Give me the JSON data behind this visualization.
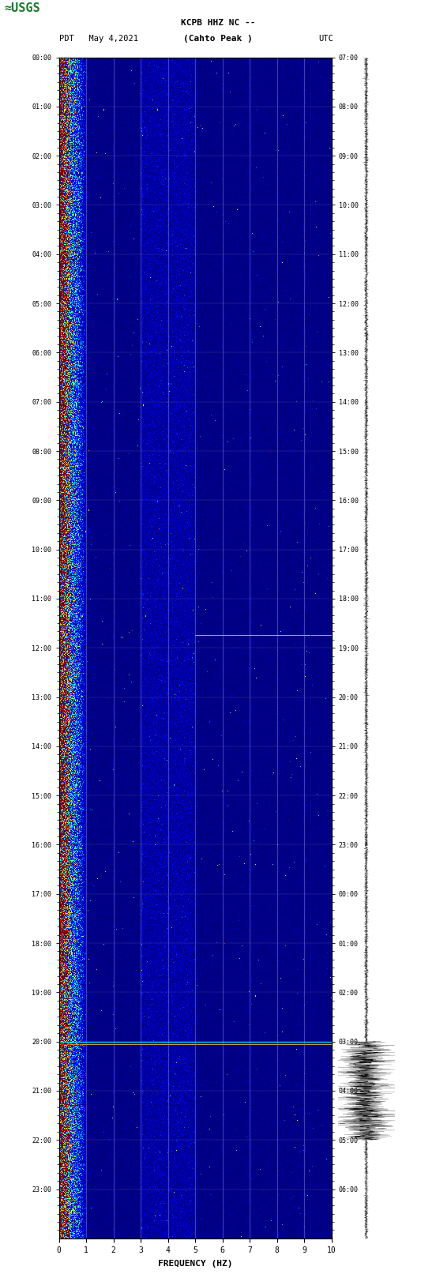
{
  "title_line1": "KCPB HHZ NC --",
  "title_line2": "(Cahto Peak )",
  "left_label": "PDT   May 4,2021",
  "right_label": "UTC",
  "xlabel": "FREQUENCY (HZ)",
  "freq_min": 0,
  "freq_max": 10,
  "time_hours": 24,
  "colormap": "jet",
  "background_color": "#ffffff",
  "fig_width": 5.52,
  "fig_height": 16.13,
  "left_ticks": [
    "00:00",
    "01:00",
    "02:00",
    "03:00",
    "04:00",
    "05:00",
    "06:00",
    "07:00",
    "08:00",
    "09:00",
    "10:00",
    "11:00",
    "12:00",
    "13:00",
    "14:00",
    "15:00",
    "16:00",
    "17:00",
    "18:00",
    "19:00",
    "20:00",
    "21:00",
    "22:00",
    "23:00"
  ],
  "right_ticks": [
    "07:00",
    "08:00",
    "09:00",
    "10:00",
    "11:00",
    "12:00",
    "13:00",
    "14:00",
    "15:00",
    "16:00",
    "17:00",
    "18:00",
    "19:00",
    "20:00",
    "21:00",
    "22:00",
    "23:00",
    "00:00",
    "01:00",
    "02:00",
    "03:00",
    "04:00",
    "05:00",
    "06:00"
  ],
  "freq_ticks": [
    0,
    1,
    2,
    3,
    4,
    5,
    6,
    7,
    8,
    9,
    10
  ],
  "vertical_lines_freq": [
    1,
    2,
    3,
    4,
    5,
    6,
    7,
    8,
    9
  ],
  "event_time_hour": 20.0,
  "usgs_logo_color": "#1a7a2e",
  "vline_color": "#888888",
  "hline_color": "#aaaaaa",
  "event_line1_color": "#00ffff",
  "event_line2_color": "#ff4444"
}
